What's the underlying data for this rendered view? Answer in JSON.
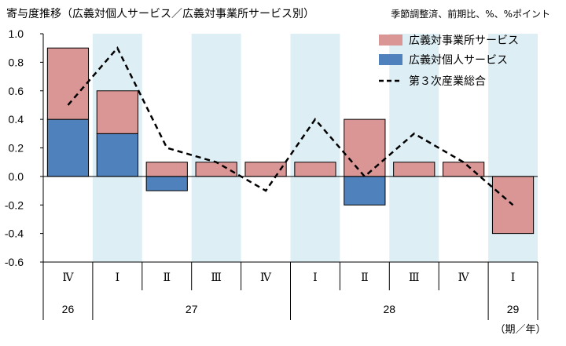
{
  "header": {
    "title": "寄与度推移（広義対個人サービス／広義対事業所サービス別）",
    "subtitle": "季節調整済、前期比、%、%ポイント"
  },
  "colors": {
    "business": "#DA9694",
    "personal": "#4F81BD",
    "total": "#000000",
    "shade": "#DDEEF5",
    "grid": "#000000"
  },
  "chart_data": {
    "type": "bar",
    "stacked": true,
    "quarters": [
      "Ⅳ",
      "Ⅰ",
      "Ⅱ",
      "Ⅲ",
      "Ⅳ",
      "Ⅰ",
      "Ⅱ",
      "Ⅲ",
      "Ⅳ",
      "Ⅰ"
    ],
    "years": [
      {
        "label": "26",
        "span": [
          0,
          0
        ]
      },
      {
        "label": "27",
        "span": [
          1,
          4
        ]
      },
      {
        "label": "28",
        "span": [
          5,
          8
        ]
      },
      {
        "label": "29",
        "span": [
          9,
          9
        ]
      }
    ],
    "x_unit_label": "（期／年）",
    "shaded": [
      1,
      3,
      5,
      7,
      9
    ],
    "ylim": [
      -0.6,
      1.0
    ],
    "yticks": [
      "1.0",
      "0.8",
      "0.6",
      "0.4",
      "0.2",
      "0.0",
      "-0.2",
      "-0.4",
      "-0.6"
    ],
    "ytick_values": [
      1.0,
      0.8,
      0.6,
      0.4,
      0.2,
      0.0,
      -0.2,
      -0.4,
      -0.6
    ],
    "series": [
      {
        "name": "広義対個人サービス",
        "kind": "bar",
        "values": [
          0.4,
          0.3,
          -0.1,
          0.0,
          0.0,
          0.0,
          -0.2,
          0.0,
          0.0,
          0.0
        ]
      },
      {
        "name": "広義対事業所サービス",
        "kind": "bar",
        "values": [
          0.5,
          0.3,
          0.1,
          0.1,
          0.1,
          0.1,
          0.4,
          0.1,
          0.1,
          -0.4
        ]
      },
      {
        "name": "第３次産業総合",
        "kind": "line",
        "values": [
          0.5,
          0.9,
          0.2,
          0.1,
          -0.1,
          0.4,
          0.0,
          0.3,
          0.1,
          -0.2
        ]
      }
    ],
    "legend": {
      "position": "top-right",
      "items": [
        {
          "label": "広義対事業所サービス",
          "type": "box"
        },
        {
          "label": "広義対個人サービス",
          "type": "box"
        },
        {
          "label": "第３次産業総合",
          "type": "dash"
        }
      ]
    }
  }
}
